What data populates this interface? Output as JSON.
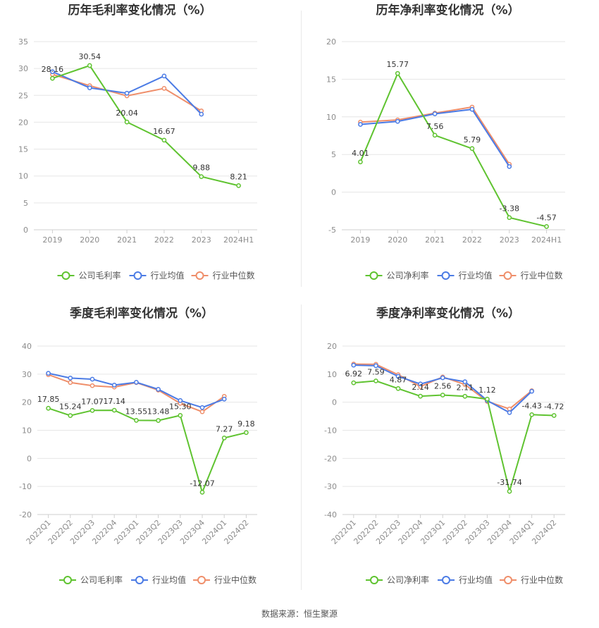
{
  "source": "数据来源：恒生聚源",
  "colors": {
    "company": "#5fc330",
    "industry_avg": "#4b7be5",
    "industry_median": "#ef8e6a"
  },
  "chart_data": [
    {
      "type": "line",
      "title": "历年毛利率变化情况（%）",
      "categories": [
        "2019",
        "2020",
        "2021",
        "2022",
        "2023",
        "2024H1"
      ],
      "ylim": [
        0,
        35
      ],
      "yticks": [
        0,
        5,
        10,
        15,
        20,
        25,
        30,
        35
      ],
      "series": [
        {
          "name": "公司毛利率",
          "values": [
            28.16,
            30.54,
            20.04,
            16.67,
            9.88,
            8.21
          ],
          "labels": [
            "28.16",
            "30.54",
            "20.04",
            "16.67",
            "9.88",
            "8.21"
          ]
        },
        {
          "name": "行业均值",
          "values": [
            29.4,
            26.4,
            25.4,
            28.6,
            21.5,
            null
          ]
        },
        {
          "name": "行业中位数",
          "values": [
            28.9,
            26.8,
            24.9,
            26.3,
            22.1,
            null
          ]
        }
      ],
      "grid": true
    },
    {
      "type": "line",
      "title": "历年净利率变化情况（%）",
      "categories": [
        "2019",
        "2020",
        "2021",
        "2022",
        "2023",
        "2024H1"
      ],
      "ylim": [
        -5,
        20
      ],
      "yticks": [
        -5,
        0,
        5,
        10,
        15,
        20
      ],
      "series": [
        {
          "name": "公司净利率",
          "values": [
            4.01,
            15.77,
            7.56,
            5.79,
            -3.38,
            -4.57
          ],
          "labels": [
            "4.01",
            "15.77",
            "7.56",
            "5.79",
            "-3.38",
            "-4.57"
          ]
        },
        {
          "name": "行业均值",
          "values": [
            9.0,
            9.4,
            10.4,
            11.0,
            3.4,
            null
          ]
        },
        {
          "name": "行业中位数",
          "values": [
            9.3,
            9.6,
            10.5,
            11.3,
            3.7,
            null
          ]
        }
      ],
      "grid": true
    },
    {
      "type": "line",
      "title": "季度毛利率变化情况（%）",
      "categories": [
        "2022Q1",
        "2022Q2",
        "2022Q3",
        "2022Q4",
        "2023Q1",
        "2023Q2",
        "2023Q3",
        "2023Q4",
        "2024Q1",
        "2024Q2"
      ],
      "ylim": [
        -20,
        40
      ],
      "yticks": [
        -20,
        -10,
        0,
        10,
        20,
        30,
        40
      ],
      "series": [
        {
          "name": "公司毛利率",
          "values": [
            17.85,
            15.24,
            17.07,
            17.14,
            13.55,
            13.48,
            15.3,
            -12.07,
            7.27,
            9.18
          ],
          "labels": [
            "17.85",
            "15.24",
            "17.07",
            "17.14",
            "13.55",
            "13.48",
            "15.30",
            "-12.07",
            "7.27",
            "9.18"
          ]
        },
        {
          "name": "行业均值",
          "values": [
            30.3,
            28.6,
            28.2,
            26.1,
            27.1,
            24.6,
            20.6,
            18.1,
            21.1,
            null
          ]
        },
        {
          "name": "行业中位数",
          "values": [
            29.8,
            27.0,
            25.9,
            25.4,
            27.0,
            24.3,
            19.6,
            16.6,
            22.1,
            null
          ]
        }
      ],
      "grid": true
    },
    {
      "type": "line",
      "title": "季度净利率变化情况（%）",
      "categories": [
        "2022Q1",
        "2022Q2",
        "2022Q3",
        "2022Q4",
        "2023Q1",
        "2023Q2",
        "2023Q3",
        "2023Q4",
        "2024Q1",
        "2024Q2"
      ],
      "ylim": [
        -40,
        20
      ],
      "yticks": [
        -40,
        -30,
        -20,
        -10,
        0,
        10,
        20
      ],
      "series": [
        {
          "name": "公司净利率",
          "values": [
            6.92,
            7.59,
            4.87,
            2.14,
            2.56,
            2.11,
            1.12,
            -31.74,
            -4.43,
            -4.72
          ],
          "labels": [
            "6.92",
            "7.59",
            "4.87",
            "2.14",
            "2.56",
            "2.11",
            "1.12",
            "-31.74",
            "-4.43",
            "-4.72"
          ]
        },
        {
          "name": "行业均值",
          "values": [
            13.2,
            13.0,
            9.2,
            6.5,
            8.7,
            7.3,
            0.6,
            -3.7,
            3.9,
            null
          ]
        },
        {
          "name": "行业中位数",
          "values": [
            13.6,
            13.5,
            9.8,
            5.6,
            9.0,
            6.3,
            0.3,
            -2.4,
            4.1,
            null
          ]
        }
      ],
      "grid": true
    }
  ]
}
